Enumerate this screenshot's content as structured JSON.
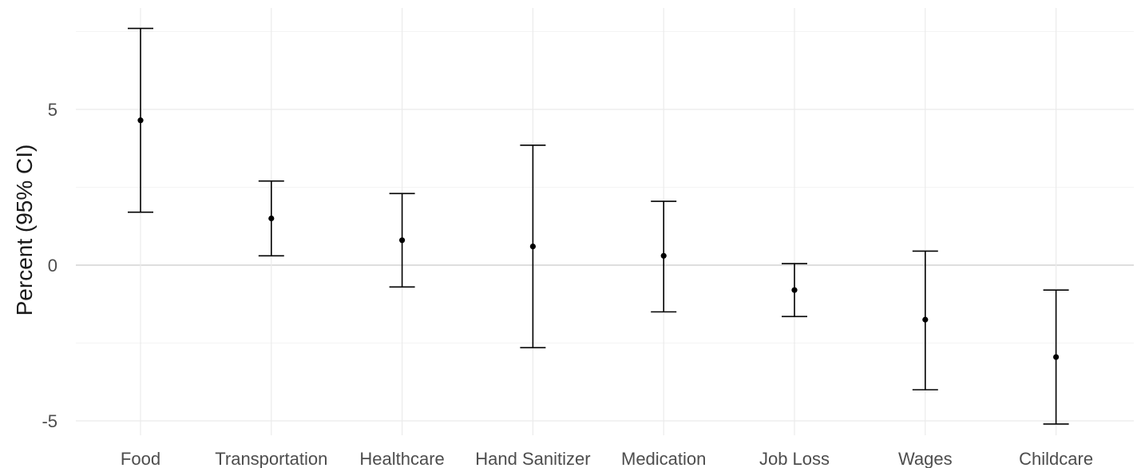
{
  "chart_data": {
    "type": "errorbar",
    "title": "",
    "xlabel": "",
    "ylabel": "Percent (95% CI)",
    "ylim": [
      -5.4,
      8.2
    ],
    "yticks": [
      -5,
      0,
      5
    ],
    "ytick_labels": [
      "-5",
      "0",
      "5"
    ],
    "grid": true,
    "categories": [
      "Food",
      "Transportation",
      "Healthcare",
      "Hand Sanitizer",
      "Medication",
      "Job Loss",
      "Wages",
      "Childcare"
    ],
    "estimates": [
      4.65,
      1.5,
      0.8,
      0.6,
      0.3,
      -0.8,
      -1.75,
      -2.95
    ],
    "ci_lower": [
      1.7,
      0.3,
      -0.7,
      -2.65,
      -1.5,
      -1.65,
      -4.0,
      -5.1
    ],
    "ci_upper": [
      7.6,
      2.7,
      2.3,
      3.85,
      2.05,
      0.05,
      0.45,
      -0.8
    ]
  },
  "colors": {
    "background": "#ffffff",
    "grid_major": "#ebebeb",
    "grid_minor": "#f4f4f4",
    "zero_line": "#d4d4d4",
    "marks": "#000000",
    "tick_text": "#4d4d4d",
    "axis_title": "#1a1a1a"
  }
}
